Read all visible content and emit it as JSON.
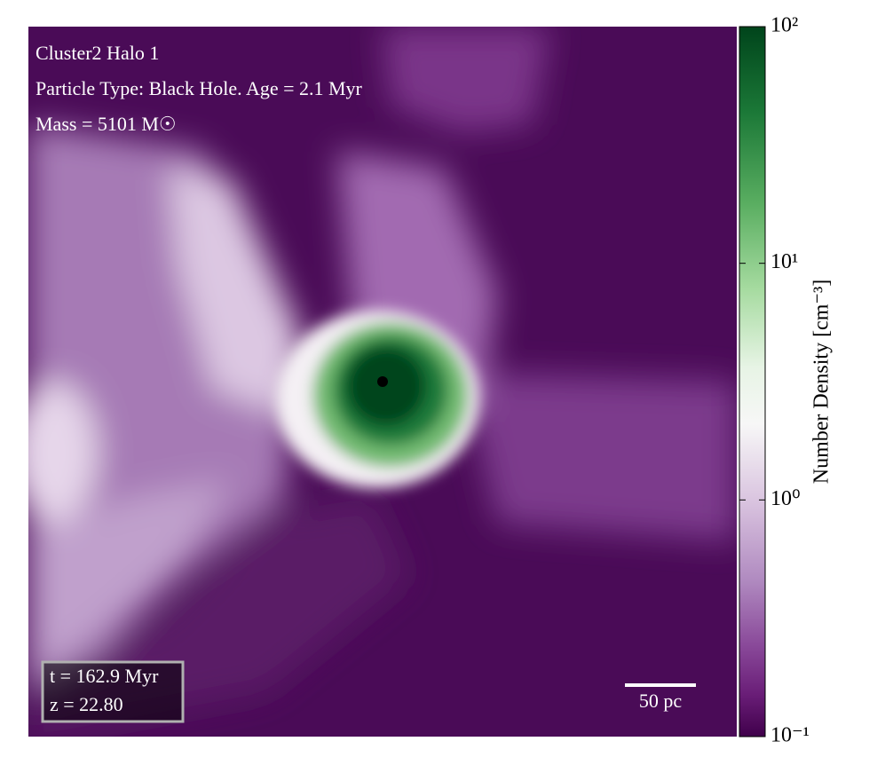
{
  "chart_data": {
    "type": "image",
    "title_lines": [
      "Cluster2 Halo 1",
      "Particle Type: Black Hole. Age = 2.1 Myr",
      "Mass = 5101 M☉"
    ],
    "time_label": "t = 162.9 Myr",
    "redshift_label": "z = 22.80",
    "scale_bar_label": "50 pc",
    "colorbar": {
      "label": "Number Density [cm⁻³]",
      "log": true,
      "lim": [
        0.1,
        100
      ],
      "ticks": [
        {
          "value": 0.1,
          "label": "10⁻¹"
        },
        {
          "value": 1,
          "label": "10⁰"
        },
        {
          "value": 10,
          "label": "10¹"
        },
        {
          "value": 100,
          "label": "10²"
        }
      ]
    }
  }
}
